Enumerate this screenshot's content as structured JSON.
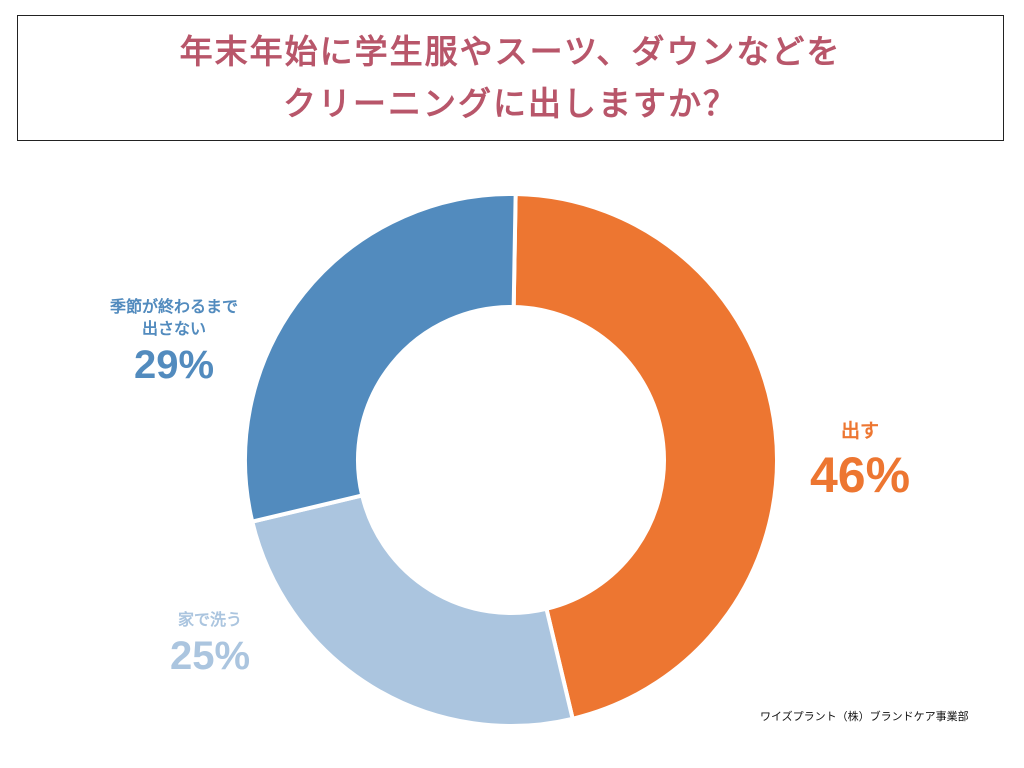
{
  "title": {
    "line1": "年末年始に学生服やスーツ、ダウンなどを",
    "line2": "クリーニングに出しますか？"
  },
  "chart_data": {
    "type": "pie",
    "style": "donut",
    "start_angle_deg": 1,
    "direction": "clockwise",
    "slices": [
      {
        "label": "出す",
        "value": 46,
        "value_label": "46%",
        "color": "#ed7631"
      },
      {
        "label": "家で洗う",
        "value": 25,
        "value_label": "25%",
        "color": "#abc5df"
      },
      {
        "label_lines": [
          "季節が終わるまで",
          "出さない"
        ],
        "value": 29,
        "value_label": "29%",
        "color": "#528bbe"
      }
    ]
  },
  "credit": "ワイズプラント（株）ブランドケア事業部"
}
